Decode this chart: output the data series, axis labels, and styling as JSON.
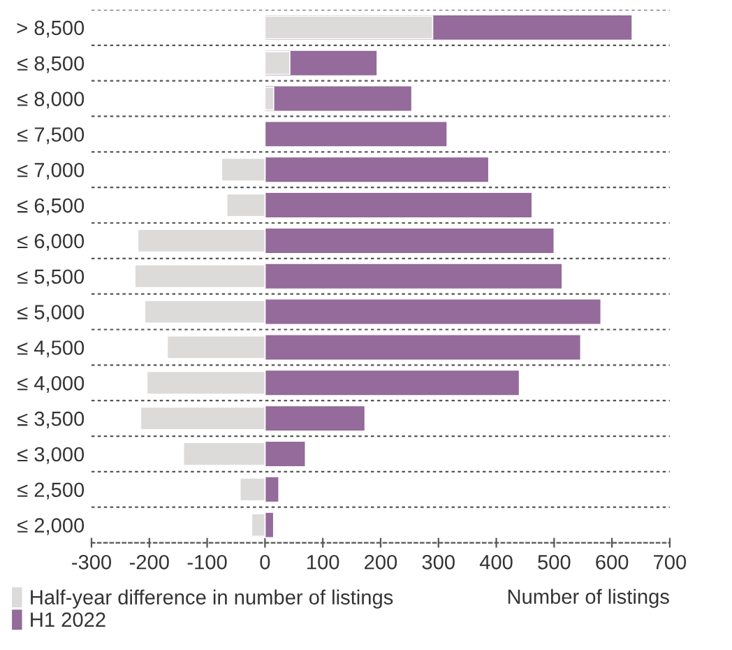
{
  "chart_data": {
    "type": "bar",
    "orientation": "horizontal",
    "xlabel": "Number of listings",
    "categories": [
      "> 8,500",
      "≤ 8,500",
      "≤ 8,000",
      "≤ 7,500",
      "≤ 7,000",
      "≤ 6,500",
      "≤ 6,000",
      "≤ 5,500",
      "≤ 5,000",
      "≤ 4,500",
      "≤ 4,000",
      "≤ 3,500",
      "≤ 3,000",
      "≤ 2,500",
      "≤ 2,000"
    ],
    "series": [
      {
        "name": "H1 2022",
        "color": "#946b9a",
        "values": [
          635,
          194,
          254,
          315,
          387,
          462,
          500,
          514,
          581,
          546,
          440,
          173,
          70,
          24,
          15
        ]
      },
      {
        "name": "Half-year difference in number of listings",
        "color": "#dcdbda",
        "values": [
          290,
          43,
          15,
          null,
          -75,
          -66,
          -220,
          -225,
          -208,
          -169,
          -204,
          -215,
          -141,
          -43,
          -23
        ]
      }
    ],
    "xlim": [
      -300,
      700
    ],
    "xticks": [
      -300,
      -200,
      -100,
      0,
      100,
      200,
      300,
      400,
      500,
      600,
      700
    ],
    "grid": "y",
    "legend": "bottom left"
  }
}
